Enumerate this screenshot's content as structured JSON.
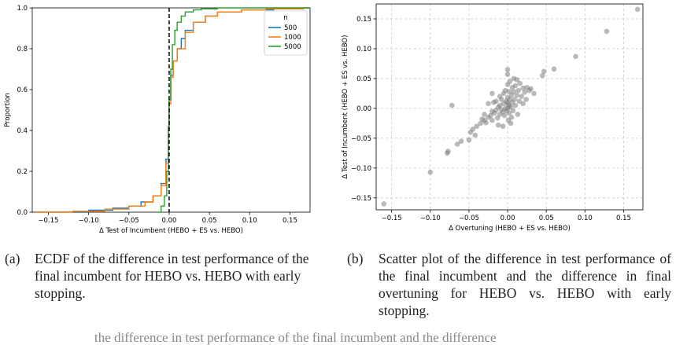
{
  "chart_data": [
    {
      "type": "line",
      "subtype": "ecdf",
      "xlabel": "Δ Test of Incumbent (HEBO + ES vs. HEBO)",
      "ylabel": "Proportion",
      "xlim": [
        -0.17,
        0.175
      ],
      "ylim": [
        0,
        1
      ],
      "xticks": [
        -0.15,
        -0.1,
        -0.05,
        0.0,
        0.05,
        0.1,
        0.15
      ],
      "xtick_labels": [
        "−0.15",
        "−0.10",
        "−0.05",
        "0.00",
        "0.05",
        "0.10",
        "0.15"
      ],
      "yticks": [
        0.0,
        0.2,
        0.4,
        0.6,
        0.8,
        1.0
      ],
      "ytick_labels": [
        "0.0",
        "0.2",
        "0.4",
        "0.6",
        "0.8",
        "1.0"
      ],
      "grid": false,
      "legend": {
        "title": "n",
        "placement": "top-right"
      },
      "vline": {
        "x": 0.0,
        "style": "dashed",
        "color": "#000000"
      },
      "series": [
        {
          "name": "500",
          "color": "#1f77b4",
          "x": [
            -0.165,
            -0.1,
            -0.07,
            -0.05,
            -0.035,
            -0.02,
            -0.01,
            -0.004,
            -0.001,
            0.0,
            0.002,
            0.005,
            0.01,
            0.015,
            0.02,
            0.03,
            0.045,
            0.06,
            0.09,
            0.13,
            0.167
          ],
          "y": [
            0.0,
            0.01,
            0.02,
            0.03,
            0.05,
            0.08,
            0.14,
            0.26,
            0.42,
            0.55,
            0.67,
            0.74,
            0.8,
            0.85,
            0.89,
            0.93,
            0.96,
            0.98,
            0.99,
            0.995,
            1.0
          ]
        },
        {
          "name": "1000",
          "color": "#ff7f0e",
          "x": [
            -0.165,
            -0.12,
            -0.08,
            -0.05,
            -0.03,
            -0.02,
            -0.01,
            -0.004,
            -0.001,
            0.0,
            0.002,
            0.005,
            0.01,
            0.02,
            0.03,
            0.045,
            0.06,
            0.09,
            0.12,
            0.167
          ],
          "y": [
            0.0,
            0.005,
            0.015,
            0.03,
            0.05,
            0.08,
            0.13,
            0.24,
            0.4,
            0.53,
            0.66,
            0.74,
            0.8,
            0.88,
            0.93,
            0.96,
            0.98,
            0.99,
            0.995,
            1.0
          ]
        },
        {
          "name": "5000",
          "color": "#2ca02c",
          "x": [
            -0.015,
            -0.01,
            -0.006,
            -0.003,
            -0.001,
            0.0,
            0.002,
            0.004,
            0.007,
            0.01,
            0.015,
            0.02,
            0.03,
            0.04,
            0.06,
            0.1,
            0.167
          ],
          "y": [
            0.0,
            0.03,
            0.08,
            0.2,
            0.4,
            0.55,
            0.7,
            0.82,
            0.89,
            0.93,
            0.96,
            0.98,
            0.99,
            0.995,
            1.0,
            1.0,
            1.0
          ]
        }
      ]
    },
    {
      "type": "scatter",
      "xlabel": "Δ Overtuning (HEBO + ES vs. HEBO)",
      "ylabel": "Δ Test of Incumbent (HEBO + ES vs. HEBO)",
      "xlim": [
        -0.17,
        0.175
      ],
      "ylim": [
        -0.17,
        0.175
      ],
      "xticks": [
        -0.15,
        -0.1,
        -0.05,
        0.0,
        0.05,
        0.1,
        0.15
      ],
      "xtick_labels": [
        "−0.15",
        "−0.10",
        "−0.05",
        "0.00",
        "0.05",
        "0.10",
        "0.15"
      ],
      "yticks": [
        -0.15,
        -0.1,
        -0.05,
        0.0,
        0.05,
        0.1,
        0.15
      ],
      "ytick_labels": [
        "−0.15",
        "−0.10",
        "−0.05",
        "0.00",
        "0.05",
        "0.10",
        "0.15"
      ],
      "grid": true,
      "point_color": "#808080",
      "points": [
        [
          -0.16,
          -0.16
        ],
        [
          -0.1,
          -0.107
        ],
        [
          -0.078,
          -0.075
        ],
        [
          -0.077,
          -0.072
        ],
        [
          -0.072,
          0.005
        ],
        [
          -0.065,
          -0.06
        ],
        [
          -0.06,
          -0.055
        ],
        [
          -0.05,
          -0.053
        ],
        [
          -0.048,
          -0.04
        ],
        [
          -0.045,
          -0.035
        ],
        [
          -0.042,
          -0.045
        ],
        [
          -0.04,
          -0.03
        ],
        [
          -0.035,
          -0.025
        ],
        [
          -0.033,
          -0.018
        ],
        [
          -0.03,
          -0.02
        ],
        [
          -0.03,
          -0.01
        ],
        [
          -0.028,
          -0.024
        ],
        [
          -0.025,
          -0.015
        ],
        [
          -0.025,
          0.008
        ],
        [
          -0.022,
          -0.012
        ],
        [
          -0.02,
          -0.005
        ],
        [
          -0.02,
          -0.02
        ],
        [
          -0.018,
          0.01
        ],
        [
          -0.017,
          -0.008
        ],
        [
          -0.015,
          -0.003
        ],
        [
          -0.015,
          0.012
        ],
        [
          -0.013,
          -0.016
        ],
        [
          -0.012,
          0.002
        ],
        [
          -0.01,
          -0.01
        ],
        [
          -0.01,
          0.005
        ],
        [
          -0.01,
          0.02
        ],
        [
          -0.008,
          -0.002
        ],
        [
          -0.008,
          0.015
        ],
        [
          -0.006,
          -0.006
        ],
        [
          -0.005,
          0.008
        ],
        [
          -0.005,
          0.025
        ],
        [
          -0.004,
          -0.012
        ],
        [
          -0.003,
          0.0
        ],
        [
          -0.003,
          0.03
        ],
        [
          -0.002,
          0.012
        ],
        [
          -0.001,
          -0.004
        ],
        [
          0.0,
          0.0
        ],
        [
          0.0,
          0.018
        ],
        [
          0.0,
          0.04
        ],
        [
          0.0,
          0.057
        ],
        [
          0.0,
          0.065
        ],
        [
          0.001,
          -0.02
        ],
        [
          0.001,
          0.006
        ],
        [
          0.002,
          0.028
        ],
        [
          0.002,
          -0.008
        ],
        [
          0.003,
          0.015
        ],
        [
          0.003,
          0.045
        ],
        [
          0.004,
          0.002
        ],
        [
          0.005,
          0.022
        ],
        [
          0.005,
          -0.015
        ],
        [
          0.006,
          0.035
        ],
        [
          0.006,
          0.01
        ],
        [
          0.007,
          -0.004
        ],
        [
          0.008,
          0.028
        ],
        [
          0.008,
          0.05
        ],
        [
          0.009,
          0.015
        ],
        [
          0.01,
          0.005
        ],
        [
          0.01,
          0.038
        ],
        [
          0.012,
          0.022
        ],
        [
          0.013,
          -0.01
        ],
        [
          0.014,
          0.03
        ],
        [
          0.015,
          0.012
        ],
        [
          0.016,
          0.042
        ],
        [
          0.018,
          0.02
        ],
        [
          0.02,
          0.008
        ],
        [
          0.02,
          0.034
        ],
        [
          0.022,
          0.027
        ],
        [
          0.024,
          0.015
        ],
        [
          0.025,
          0.035
        ],
        [
          0.028,
          0.03
        ],
        [
          0.03,
          0.033
        ],
        [
          0.034,
          0.025
        ],
        [
          0.045,
          0.055
        ],
        [
          0.047,
          0.062
        ],
        [
          0.06,
          0.066
        ],
        [
          0.088,
          0.087
        ],
        [
          0.128,
          0.129
        ],
        [
          0.168,
          0.166
        ],
        [
          -0.012,
          -0.028
        ],
        [
          -0.006,
          -0.03
        ],
        [
          0.004,
          -0.025
        ],
        [
          0.012,
          0.048
        ],
        [
          -0.02,
          0.025
        ],
        [
          0.0,
          0.01
        ],
        [
          0.002,
          0.004
        ]
      ]
    }
  ],
  "captions": {
    "a_label": "(a)",
    "a_text": "ECDF of the difference in test performance of the final incumbent for HEBO vs. HEBO with early stopping.",
    "b_label": "(b)",
    "b_text": "Scatter plot of the difference in test performance of the final incumbent and the difference in final overtuning for HEBO vs. HEBO with early stopping.",
    "main_partial": "the difference in test performance of the final incumbent and the difference"
  }
}
